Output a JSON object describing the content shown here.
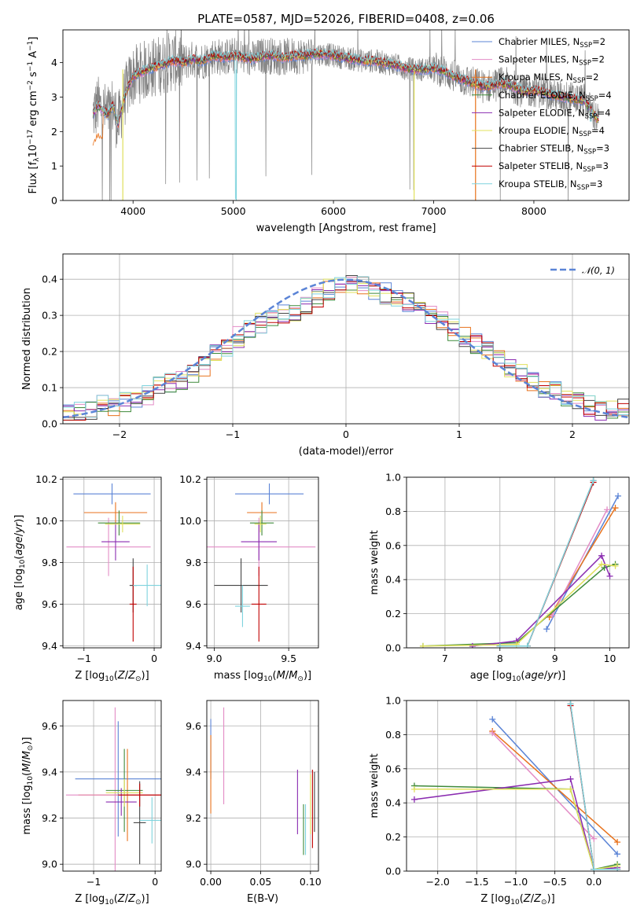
{
  "title": "PLATE=0587, MJD=52026, FIBERID=0408, z=0.06",
  "colors": {
    "blue": "#5b84d6",
    "orange": "#e8721c",
    "pink": "#e38cc6",
    "green": "#3f8a3a",
    "purple": "#8a2bb0",
    "yellow": "#e0e05c",
    "black": "#444444",
    "red": "#c00000",
    "cyan": "#7fd3dd",
    "data_gray": "#808080",
    "normal_dashed": "#5b84d6"
  },
  "chart_data": [
    {
      "id": "spectrum",
      "type": "line",
      "xlabel": "wavelength [Angstrom, rest frame]",
      "ylabel": "Flux [f_λ 10^-17 erg cm^-2 s^-1 A^-1]",
      "xlim": [
        3300,
        8950
      ],
      "ylim": [
        0,
        4.95
      ],
      "xticks": [
        "4000",
        "5000",
        "6000",
        "7000",
        "8000"
      ],
      "yticks": [
        "0",
        "1",
        "2",
        "3",
        "4"
      ],
      "grid": false,
      "legend_position": "top-right",
      "continuum": {
        "x": [
          3600,
          3650,
          3700,
          3750,
          3800,
          3850,
          3900,
          3950,
          4000,
          4100,
          4200,
          4300,
          4400,
          4500,
          4600,
          4700,
          4800,
          4900,
          5000,
          5100,
          5200,
          5300,
          5400,
          5500,
          5600,
          5700,
          5800,
          5900,
          6000,
          6100,
          6200,
          6300,
          6400,
          6500,
          6600,
          6700,
          6800,
          6900,
          7000,
          7100,
          7200,
          7300,
          7400,
          7500,
          7600,
          7700,
          7800,
          7900,
          8000,
          8100,
          8200,
          8300,
          8400,
          8500,
          8650
        ],
        "y": [
          2.5,
          2.75,
          2.6,
          2.5,
          2.75,
          2.2,
          2.85,
          3.3,
          3.6,
          3.75,
          3.85,
          3.95,
          4.05,
          4.0,
          4.1,
          4.05,
          4.2,
          4.15,
          4.2,
          4.15,
          4.1,
          4.2,
          4.2,
          4.15,
          4.2,
          4.2,
          4.25,
          4.25,
          4.2,
          4.15,
          4.1,
          4.05,
          4.05,
          4.0,
          3.95,
          3.85,
          3.8,
          3.8,
          3.85,
          3.75,
          3.6,
          3.5,
          3.4,
          3.3,
          3.35,
          3.4,
          3.3,
          3.15,
          3.2,
          3.15,
          3.05,
          3.0,
          2.95,
          2.9,
          2.3
        ]
      },
      "series": [
        {
          "name": "Chabrier MILES, N_SSP=2",
          "color": "blue"
        },
        {
          "name": "Salpeter MILES, N_SSP=2",
          "color": "pink"
        },
        {
          "name": "Kroupa MILES, N_SSP=2",
          "color": "orange"
        },
        {
          "name": "Chabrier ELODIE, N_SSP=4",
          "color": "green"
        },
        {
          "name": "Salpeter ELODIE, N_SSP=4",
          "color": "purple"
        },
        {
          "name": "Kroupa ELODIE, N_SSP=4",
          "color": "yellow"
        },
        {
          "name": "Chabrier STELIB, N_SSP=3",
          "color": "black"
        },
        {
          "name": "Salpeter STELIB, N_SSP=3",
          "color": "red"
        },
        {
          "name": "Kroupa STELIB, N_SSP=3",
          "color": "cyan"
        }
      ],
      "legend_entries": [
        {
          "base": "Chabrier MILES, N",
          "sub": "SSP",
          "tail": "=2",
          "color": "blue"
        },
        {
          "base": "Salpeter MILES, N",
          "sub": "SSP",
          "tail": "=2",
          "color": "pink"
        },
        {
          "base": "Kroupa MILES, N",
          "sub": "SSP",
          "tail": "=2",
          "color": "orange"
        },
        {
          "base": "Chabrier ELODIE, N",
          "sub": "SSP",
          "tail": "=4",
          "color": "green"
        },
        {
          "base": "Salpeter ELODIE, N",
          "sub": "SSP",
          "tail": "=4",
          "color": "purple"
        },
        {
          "base": "Kroupa ELODIE, N",
          "sub": "SSP",
          "tail": "=4",
          "color": "yellow"
        },
        {
          "base": "Chabrier STELIB, N",
          "sub": "SSP",
          "tail": "=3",
          "color": "black"
        },
        {
          "base": "Salpeter STELIB, N",
          "sub": "SSP",
          "tail": "=3",
          "color": "red"
        },
        {
          "base": "Kroupa STELIB, N",
          "sub": "SSP",
          "tail": "=3",
          "color": "cyan"
        }
      ]
    },
    {
      "id": "residual_histogram",
      "type": "line",
      "xlabel": "(data-model)/error",
      "ylabel": "Normed distribution",
      "xlim": [
        -2.5,
        2.5
      ],
      "ylim": [
        0,
        0.47
      ],
      "xticks": [
        "−2",
        "−1",
        "0",
        "1",
        "2"
      ],
      "yticks": [
        "0.0",
        "0.1",
        "0.2",
        "0.3",
        "0.4"
      ],
      "grid": true,
      "legend_position": "top-right",
      "legend_label": "𝒩(0, 1)",
      "normal_curve": {
        "mean": 0,
        "sigma": 1
      },
      "bin_edges_range": [
        -2.5,
        2.5
      ],
      "n_bins": 50,
      "envelope": [
        0.03,
        0.03,
        0.04,
        0.05,
        0.05,
        0.06,
        0.07,
        0.08,
        0.1,
        0.11,
        0.12,
        0.14,
        0.16,
        0.19,
        0.21,
        0.24,
        0.26,
        0.28,
        0.29,
        0.3,
        0.31,
        0.33,
        0.35,
        0.37,
        0.38,
        0.39,
        0.38,
        0.37,
        0.36,
        0.35,
        0.34,
        0.32,
        0.3,
        0.28,
        0.26,
        0.24,
        0.22,
        0.2,
        0.18,
        0.16,
        0.14,
        0.12,
        0.1,
        0.09,
        0.07,
        0.06,
        0.05,
        0.04,
        0.04,
        0.04
      ]
    },
    {
      "id": "age_vs_Z",
      "type": "scatter",
      "xlabel": "Z [log10(Z/Z⊙)]",
      "ylabel": "age [log10(age/yr)]",
      "xlim": [
        -1.3,
        0.1
      ],
      "ylim": [
        9.39,
        10.21
      ],
      "xticks": [
        "−1",
        "0"
      ],
      "yticks": [
        "9.4",
        "9.6",
        "9.8",
        "10.0",
        "10.2"
      ],
      "grid": true,
      "points": [
        {
          "color": "blue",
          "x": -0.6,
          "xerr": 0.55,
          "y": 10.13,
          "yerr": 0.05
        },
        {
          "color": "orange",
          "x": -0.55,
          "xerr": 0.45,
          "y": 10.04,
          "yerr": 0.05
        },
        {
          "color": "pink",
          "x": -0.65,
          "xerr": 0.6,
          "y": 9.875,
          "yerr": 0.14
        },
        {
          "color": "green",
          "x": -0.5,
          "xerr": 0.3,
          "y": 9.99,
          "yerr": 0.06
        },
        {
          "color": "purple",
          "x": -0.55,
          "xerr": 0.2,
          "y": 9.9,
          "yerr": 0.09
        },
        {
          "color": "yellow",
          "x": -0.45,
          "xerr": 0.25,
          "y": 9.985,
          "yerr": 0.04
        },
        {
          "color": "black",
          "x": -0.3,
          "xerr": 0.05,
          "y": 9.69,
          "yerr": 0.13
        },
        {
          "color": "red",
          "x": -0.3,
          "xerr": 0.05,
          "y": 9.6,
          "yerr": 0.18
        },
        {
          "color": "cyan",
          "x": -0.1,
          "xerr": 0.2,
          "y": 9.69,
          "yerr": 0.1
        }
      ]
    },
    {
      "id": "age_vs_mass",
      "type": "scatter",
      "xlabel": "mass [log10(M/M⊙)]",
      "ylabel": "",
      "xlim": [
        8.95,
        9.7
      ],
      "ylim": [
        9.39,
        10.21
      ],
      "xticks": [
        "9.0",
        "9.5"
      ],
      "yticks": [
        "9.4",
        "9.6",
        "9.8",
        "10.0",
        "10.2"
      ],
      "grid": true,
      "points": [
        {
          "color": "blue",
          "x": 9.37,
          "xerr": 0.23,
          "y": 10.13,
          "yerr": 0.05
        },
        {
          "color": "orange",
          "x": 9.32,
          "xerr": 0.1,
          "y": 10.04,
          "yerr": 0.05
        },
        {
          "color": "pink",
          "x": 9.3,
          "xerr": 0.38,
          "y": 9.875,
          "yerr": 0.14
        },
        {
          "color": "green",
          "x": 9.32,
          "xerr": 0.08,
          "y": 9.99,
          "yerr": 0.06
        },
        {
          "color": "purple",
          "x": 9.3,
          "xerr": 0.12,
          "y": 9.9,
          "yerr": 0.09
        },
        {
          "color": "yellow",
          "x": 9.31,
          "xerr": 0.04,
          "y": 9.985,
          "yerr": 0.04
        },
        {
          "color": "black",
          "x": 9.18,
          "xerr": 0.18,
          "y": 9.69,
          "yerr": 0.13
        },
        {
          "color": "red",
          "x": 9.3,
          "xerr": 0.05,
          "y": 9.6,
          "yerr": 0.18
        },
        {
          "color": "cyan",
          "x": 9.19,
          "xerr": 0.05,
          "y": 9.59,
          "yerr": 0.1
        }
      ]
    },
    {
      "id": "mass_weight_vs_age",
      "type": "line",
      "xlabel": "age [log10(age/yr)]",
      "ylabel": "mass weight",
      "xlim": [
        6.3,
        10.35
      ],
      "ylim": [
        0,
        1.0
      ],
      "xticks": [
        "7",
        "8",
        "9",
        "10"
      ],
      "yticks": [
        "0.0",
        "0.2",
        "0.4",
        "0.6",
        "0.8",
        "1.0"
      ],
      "grid": true,
      "series": [
        {
          "color": "blue",
          "x": [
            8.85,
            10.15
          ],
          "y": [
            0.11,
            0.89
          ]
        },
        {
          "color": "orange",
          "x": [
            8.9,
            10.1
          ],
          "y": [
            0.18,
            0.82
          ]
        },
        {
          "color": "pink",
          "x": [
            8.95,
            9.95
          ],
          "y": [
            0.19,
            0.81
          ]
        },
        {
          "color": "green",
          "x": [
            6.6,
            8.3,
            9.9,
            10.1
          ],
          "y": [
            0.01,
            0.03,
            0.47,
            0.49
          ]
        },
        {
          "color": "purple",
          "x": [
            7.5,
            8.3,
            9.85,
            10.0
          ],
          "y": [
            0.01,
            0.04,
            0.54,
            0.42
          ]
        },
        {
          "color": "yellow",
          "x": [
            6.6,
            8.3,
            9.85,
            10.1
          ],
          "y": [
            0.01,
            0.02,
            0.49,
            0.48
          ]
        },
        {
          "color": "black",
          "x": [
            8.0,
            8.5,
            9.7
          ],
          "y": [
            0.01,
            0.01,
            0.98
          ]
        },
        {
          "color": "red",
          "x": [
            8.0,
            8.5,
            9.7
          ],
          "y": [
            0.01,
            0.01,
            0.97
          ]
        },
        {
          "color": "cyan",
          "x": [
            8.0,
            8.5,
            9.7
          ],
          "y": [
            0.01,
            0.01,
            0.98
          ]
        }
      ]
    },
    {
      "id": "mass_vs_Z",
      "type": "scatter",
      "xlabel": "Z [log10(Z/Z⊙)]",
      "ylabel": "mass [log10(M/M⊙)]",
      "xlim": [
        -1.5,
        0.1
      ],
      "ylim": [
        8.97,
        9.71
      ],
      "xticks": [
        "−1",
        "0"
      ],
      "yticks": [
        "9.0",
        "9.2",
        "9.4",
        "9.6"
      ],
      "grid": true,
      "points": [
        {
          "color": "blue",
          "x": -0.6,
          "xerr": 0.7,
          "y": 9.37,
          "yerr": 0.25
        },
        {
          "color": "orange",
          "x": -0.45,
          "xerr": 0.8,
          "y": 9.3,
          "yerr": 0.2
        },
        {
          "color": "pink",
          "x": -0.65,
          "xerr": 0.8,
          "y": 9.3,
          "yerr": 0.38
        },
        {
          "color": "green",
          "x": -0.5,
          "xerr": 0.3,
          "y": 9.32,
          "yerr": 0.18
        },
        {
          "color": "purple",
          "x": -0.55,
          "xerr": 0.25,
          "y": 9.27,
          "yerr": 0.06
        },
        {
          "color": "yellow",
          "x": -0.5,
          "xerr": 0.3,
          "y": 9.31,
          "yerr": 0.06
        },
        {
          "color": "black",
          "x": -0.25,
          "xerr": 0.1,
          "y": 9.18,
          "yerr": 0.18
        },
        {
          "color": "red",
          "x": -0.25,
          "xerr": 0.35,
          "y": 9.3,
          "yerr": 0.05
        },
        {
          "color": "cyan",
          "x": -0.05,
          "xerr": 0.2,
          "y": 9.19,
          "yerr": 0.1
        }
      ]
    },
    {
      "id": "mass_vs_ebv",
      "type": "scatter",
      "xlabel": "E(B-V)",
      "ylabel": "",
      "xlim": [
        -0.004,
        0.108
      ],
      "ylim": [
        8.97,
        9.71
      ],
      "xticks": [
        "0.00",
        "0.05",
        "0.10"
      ],
      "yticks": [
        "9.0",
        "9.2",
        "9.4",
        "9.6"
      ],
      "grid": true,
      "points": [
        {
          "color": "blue",
          "x": 0.0,
          "y": 9.5,
          "yerr": 0.13
        },
        {
          "color": "orange",
          "x": 0.0,
          "y": 9.39,
          "yerr": 0.17
        },
        {
          "color": "pink",
          "x": 0.013,
          "y": 9.47,
          "yerr": 0.21
        },
        {
          "color": "purple",
          "x": 0.087,
          "y": 9.27,
          "yerr": 0.14
        },
        {
          "color": "green",
          "x": 0.093,
          "y": 9.15,
          "yerr": 0.11
        },
        {
          "color": "cyan",
          "x": 0.095,
          "y": 9.15,
          "yerr": 0.11
        },
        {
          "color": "yellow",
          "x": 0.1,
          "y": 9.26,
          "yerr": 0.13
        },
        {
          "color": "red",
          "x": 0.102,
          "y": 9.24,
          "yerr": 0.17
        },
        {
          "color": "black",
          "x": 0.104,
          "y": 9.27,
          "yerr": 0.13
        }
      ]
    },
    {
      "id": "mass_weight_vs_Z",
      "type": "line",
      "xlabel": "Z [log10(Z/Z⊙)]",
      "ylabel": "mass weight",
      "xlim": [
        -2.4,
        0.45
      ],
      "ylim": [
        0,
        1.0
      ],
      "xticks": [
        "−2.0",
        "−1.5",
        "−1.0",
        "−0.5",
        "0.0"
      ],
      "yticks": [
        "0.0",
        "0.2",
        "0.4",
        "0.6",
        "0.8",
        "1.0"
      ],
      "grid": true,
      "series": [
        {
          "color": "blue",
          "x": [
            -1.3,
            0.3
          ],
          "y": [
            0.89,
            0.1
          ]
        },
        {
          "color": "orange",
          "x": [
            -1.3,
            0.3
          ],
          "y": [
            0.82,
            0.17
          ]
        },
        {
          "color": "pink",
          "x": [
            -1.3,
            0.0
          ],
          "y": [
            0.81,
            0.19
          ]
        },
        {
          "color": "green",
          "x": [
            -2.3,
            -0.3,
            0.0,
            0.3
          ],
          "y": [
            0.5,
            0.48,
            0.01,
            0.04
          ]
        },
        {
          "color": "purple",
          "x": [
            -2.3,
            -0.3,
            0.0,
            0.3
          ],
          "y": [
            0.42,
            0.54,
            0.01,
            0.02
          ]
        },
        {
          "color": "yellow",
          "x": [
            -2.3,
            -0.3,
            0.0,
            0.3
          ],
          "y": [
            0.48,
            0.48,
            0.01,
            0.03
          ]
        },
        {
          "color": "black",
          "x": [
            -0.3,
            0.0,
            0.3
          ],
          "y": [
            0.98,
            0.01,
            0.01
          ]
        },
        {
          "color": "red",
          "x": [
            -0.3,
            0.0,
            0.3
          ],
          "y": [
            0.97,
            0.01,
            0.01
          ]
        },
        {
          "color": "cyan",
          "x": [
            -0.3,
            0.0,
            0.3
          ],
          "y": [
            0.98,
            0.01,
            0.01
          ]
        }
      ]
    }
  ]
}
